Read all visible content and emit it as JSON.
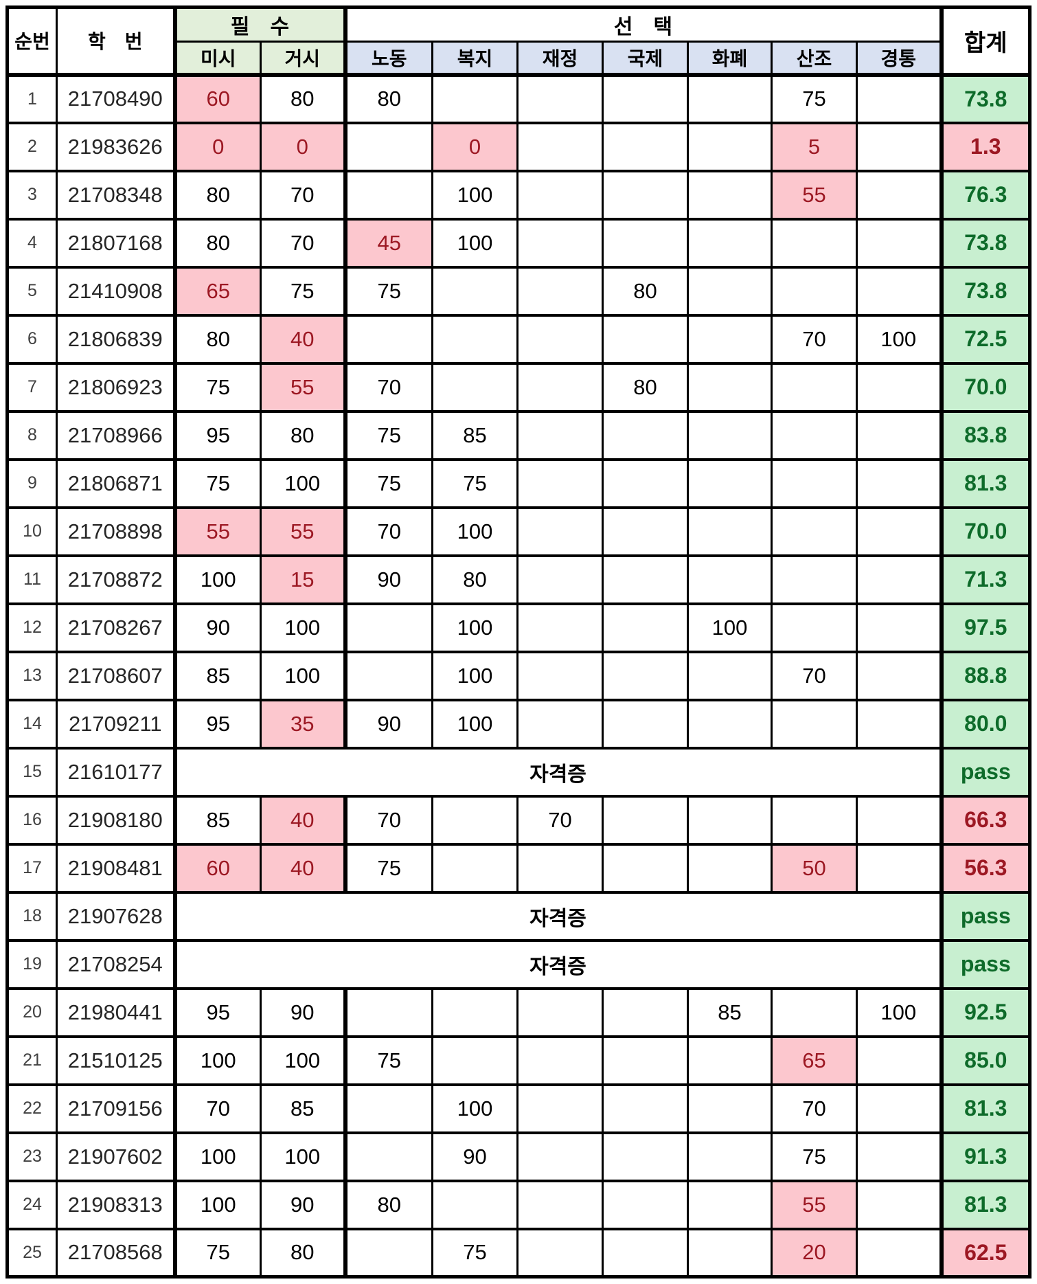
{
  "table": {
    "header": {
      "col_no": "순번",
      "col_id": "학　번",
      "group_required": "필　수",
      "group_elective": "선　택",
      "col_total": "합계",
      "required_subjects": [
        "미시",
        "거시"
      ],
      "elective_subjects": [
        "노동",
        "복지",
        "재정",
        "국제",
        "화폐",
        "산조",
        "경통"
      ]
    },
    "colors": {
      "required_header_bg": "#E2EFDA",
      "elective_header_bg": "#D9E1F2",
      "low_score_bg": "#FCC7CE",
      "low_score_text": "#9C1823",
      "pass_bg": "#C8EFD0",
      "pass_text": "#0E6B2A"
    },
    "rows": [
      {
        "no": "1",
        "id": "21708490",
        "scores": [
          {
            "v": "60",
            "bad": true
          },
          {
            "v": "80"
          },
          {
            "v": "80"
          },
          {},
          {},
          {},
          {},
          {
            "v": "75"
          },
          {}
        ],
        "total": "73.8",
        "total_status": "good"
      },
      {
        "no": "2",
        "id": "21983626",
        "scores": [
          {
            "v": "0",
            "bad": true
          },
          {
            "v": "0",
            "bad": true
          },
          {},
          {
            "v": "0",
            "bad": true
          },
          {},
          {},
          {},
          {
            "v": "5",
            "bad": true
          },
          {}
        ],
        "total": "1.3",
        "total_status": "bad"
      },
      {
        "no": "3",
        "id": "21708348",
        "scores": [
          {
            "v": "80"
          },
          {
            "v": "70"
          },
          {},
          {
            "v": "100"
          },
          {},
          {},
          {},
          {
            "v": "55",
            "bad": true
          },
          {}
        ],
        "total": "76.3",
        "total_status": "good"
      },
      {
        "no": "4",
        "id": "21807168",
        "scores": [
          {
            "v": "80"
          },
          {
            "v": "70"
          },
          {
            "v": "45",
            "bad": true
          },
          {
            "v": "100"
          },
          {},
          {},
          {},
          {},
          {}
        ],
        "total": "73.8",
        "total_status": "good"
      },
      {
        "no": "5",
        "id": "21410908",
        "scores": [
          {
            "v": "65",
            "bad": true
          },
          {
            "v": "75"
          },
          {
            "v": "75"
          },
          {},
          {},
          {
            "v": "80"
          },
          {},
          {},
          {}
        ],
        "total": "73.8",
        "total_status": "good"
      },
      {
        "no": "6",
        "id": "21806839",
        "scores": [
          {
            "v": "80"
          },
          {
            "v": "40",
            "bad": true
          },
          {},
          {},
          {},
          {},
          {},
          {
            "v": "70"
          },
          {
            "v": "100"
          }
        ],
        "total": "72.5",
        "total_status": "good"
      },
      {
        "no": "7",
        "id": "21806923",
        "scores": [
          {
            "v": "75"
          },
          {
            "v": "55",
            "bad": true
          },
          {
            "v": "70"
          },
          {},
          {},
          {
            "v": "80"
          },
          {},
          {},
          {}
        ],
        "total": "70.0",
        "total_status": "good"
      },
      {
        "no": "8",
        "id": "21708966",
        "scores": [
          {
            "v": "95"
          },
          {
            "v": "80"
          },
          {
            "v": "75"
          },
          {
            "v": "85"
          },
          {},
          {},
          {},
          {},
          {}
        ],
        "total": "83.8",
        "total_status": "good"
      },
      {
        "no": "9",
        "id": "21806871",
        "scores": [
          {
            "v": "75"
          },
          {
            "v": "100"
          },
          {
            "v": "75"
          },
          {
            "v": "75"
          },
          {},
          {},
          {},
          {},
          {}
        ],
        "total": "81.3",
        "total_status": "good"
      },
      {
        "no": "10",
        "id": "21708898",
        "scores": [
          {
            "v": "55",
            "bad": true
          },
          {
            "v": "55",
            "bad": true
          },
          {
            "v": "70"
          },
          {
            "v": "100"
          },
          {},
          {},
          {},
          {},
          {}
        ],
        "total": "70.0",
        "total_status": "good"
      },
      {
        "no": "11",
        "id": "21708872",
        "scores": [
          {
            "v": "100"
          },
          {
            "v": "15",
            "bad": true
          },
          {
            "v": "90"
          },
          {
            "v": "80"
          },
          {},
          {},
          {},
          {},
          {}
        ],
        "total": "71.3",
        "total_status": "good"
      },
      {
        "no": "12",
        "id": "21708267",
        "scores": [
          {
            "v": "90"
          },
          {
            "v": "100"
          },
          {},
          {
            "v": "100"
          },
          {},
          {},
          {
            "v": "100"
          },
          {},
          {}
        ],
        "total": "97.5",
        "total_status": "good"
      },
      {
        "no": "13",
        "id": "21708607",
        "scores": [
          {
            "v": "85"
          },
          {
            "v": "100"
          },
          {},
          {
            "v": "100"
          },
          {},
          {},
          {},
          {
            "v": "70"
          },
          {}
        ],
        "total": "88.8",
        "total_status": "good"
      },
      {
        "no": "14",
        "id": "21709211",
        "scores": [
          {
            "v": "95"
          },
          {
            "v": "35",
            "bad": true
          },
          {
            "v": "90"
          },
          {
            "v": "100"
          },
          {},
          {},
          {},
          {},
          {}
        ],
        "total": "80.0",
        "total_status": "good"
      },
      {
        "no": "15",
        "id": "21610177",
        "cert": "자격증",
        "total": "pass",
        "total_status": "good"
      },
      {
        "no": "16",
        "id": "21908180",
        "scores": [
          {
            "v": "85"
          },
          {
            "v": "40",
            "bad": true
          },
          {
            "v": "70"
          },
          {},
          {
            "v": "70"
          },
          {},
          {},
          {},
          {}
        ],
        "total": "66.3",
        "total_status": "bad"
      },
      {
        "no": "17",
        "id": "21908481",
        "scores": [
          {
            "v": "60",
            "bad": true
          },
          {
            "v": "40",
            "bad": true
          },
          {
            "v": "75"
          },
          {},
          {},
          {},
          {},
          {
            "v": "50",
            "bad": true
          },
          {}
        ],
        "total": "56.3",
        "total_status": "bad"
      },
      {
        "no": "18",
        "id": "21907628",
        "cert": "자격증",
        "total": "pass",
        "total_status": "good"
      },
      {
        "no": "19",
        "id": "21708254",
        "cert": "자격증",
        "total": "pass",
        "total_status": "good"
      },
      {
        "no": "20",
        "id": "21980441",
        "scores": [
          {
            "v": "95"
          },
          {
            "v": "90"
          },
          {},
          {},
          {},
          {},
          {
            "v": "85"
          },
          {},
          {
            "v": "100"
          }
        ],
        "total": "92.5",
        "total_status": "good"
      },
      {
        "no": "21",
        "id": "21510125",
        "scores": [
          {
            "v": "100"
          },
          {
            "v": "100"
          },
          {
            "v": "75"
          },
          {},
          {},
          {},
          {},
          {
            "v": "65",
            "bad": true
          },
          {}
        ],
        "total": "85.0",
        "total_status": "good"
      },
      {
        "no": "22",
        "id": "21709156",
        "scores": [
          {
            "v": "70"
          },
          {
            "v": "85"
          },
          {},
          {
            "v": "100"
          },
          {},
          {},
          {},
          {
            "v": "70"
          },
          {}
        ],
        "total": "81.3",
        "total_status": "good"
      },
      {
        "no": "23",
        "id": "21907602",
        "scores": [
          {
            "v": "100"
          },
          {
            "v": "100"
          },
          {},
          {
            "v": "90"
          },
          {},
          {},
          {},
          {
            "v": "75"
          },
          {}
        ],
        "total": "91.3",
        "total_status": "good"
      },
      {
        "no": "24",
        "id": "21908313",
        "scores": [
          {
            "v": "100"
          },
          {
            "v": "90"
          },
          {
            "v": "80"
          },
          {},
          {},
          {},
          {},
          {
            "v": "55",
            "bad": true
          },
          {}
        ],
        "total": "81.3",
        "total_status": "good"
      },
      {
        "no": "25",
        "id": "21708568",
        "scores": [
          {
            "v": "75"
          },
          {
            "v": "80"
          },
          {},
          {
            "v": "75"
          },
          {},
          {},
          {},
          {
            "v": "20",
            "bad": true
          },
          {}
        ],
        "total": "62.5",
        "total_status": "bad"
      }
    ]
  }
}
